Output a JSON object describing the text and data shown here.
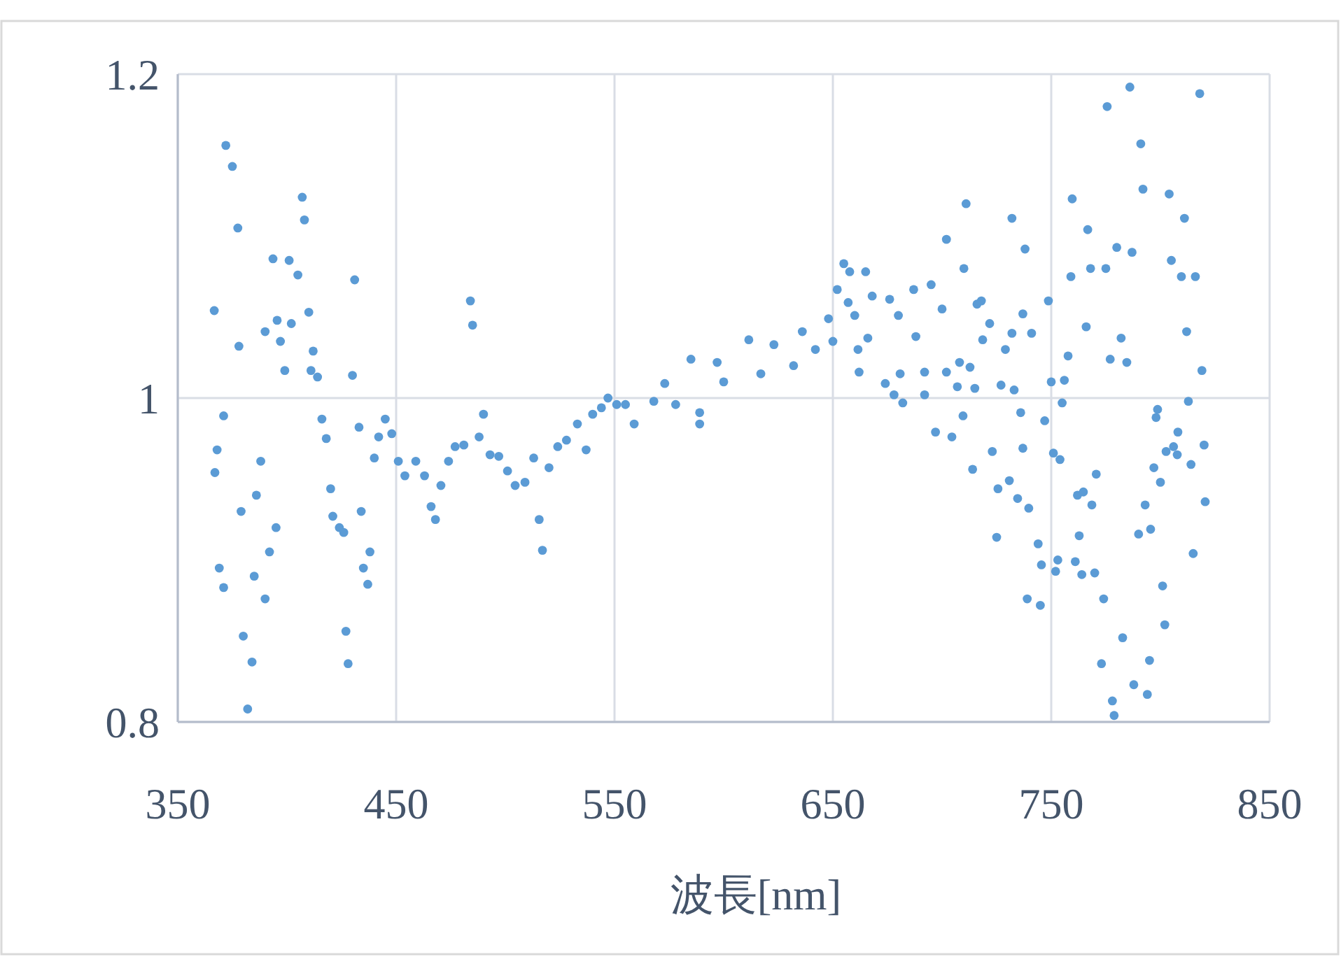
{
  "chart_data": {
    "type": "scatter",
    "xlabel": "波長[nm]",
    "xlim": [
      350,
      850
    ],
    "xticks": [
      350,
      450,
      550,
      650,
      750,
      850
    ],
    "ylim": [
      0.8,
      1.2
    ],
    "yticks": [
      0.8,
      1,
      1.2
    ],
    "grid": true,
    "marker": "circle",
    "series": [
      {
        "color": "#5b9bd5",
        "x": [
          366.7,
          368,
          367,
          369,
          371,
          371,
          372,
          375,
          377.5,
          378,
          379,
          380,
          382,
          384,
          385,
          386,
          388,
          390,
          390,
          392,
          393.6,
          395,
          395.5,
          397,
          399,
          401,
          402,
          405,
          407,
          408,
          410,
          411,
          412,
          414,
          416,
          418,
          420,
          421,
          424,
          426,
          427,
          428,
          430,
          431,
          433,
          434,
          435,
          437,
          438,
          440,
          442,
          445,
          448,
          451,
          454,
          459,
          463,
          466,
          468,
          470.5,
          474,
          477,
          481,
          484,
          485,
          488,
          490,
          493,
          497,
          501,
          504.5,
          509,
          513,
          515.5,
          517,
          520,
          524,
          528,
          533,
          537,
          540,
          544,
          547,
          551,
          555,
          559,
          568,
          573,
          578,
          589,
          589,
          585,
          597,
          600,
          611.5,
          617,
          623,
          632,
          636,
          642,
          648,
          650,
          655,
          657.7,
          665,
          652,
          657,
          660,
          661.5,
          662,
          666,
          668,
          674,
          676,
          678,
          682,
          680,
          687,
          695,
          688,
          692,
          692,
          697,
          700,
          711,
          702,
          710,
          718,
          732,
          738,
          737,
          732,
          729,
          727,
          733,
          736,
          747,
          714,
          704.5,
          709.6,
          723,
          725.6,
          730.8,
          734.6,
          739.7,
          725,
          737,
          744,
          739,
          745,
          745.5,
          752,
          753,
          751,
          754,
          750,
          755,
          756,
          757.7,
          748.7,
          759,
          759.6,
          766.7,
          768,
          766,
          761,
          764,
          762,
          764.7,
          762.8,
          768.6,
          770.6,
          769.9,
          774,
          773,
          778,
          778.8,
          782.7,
          780,
          775.6,
          775,
          777,
          782,
          784.6,
          786,
          791,
          792,
          787,
          787.8,
          794,
          795,
          790,
          795.5,
          793,
          797,
          800,
          801,
          802,
          798,
          798.7,
          802.6,
          806,
          808,
          807.7,
          804,
          805,
          811,
          809.6,
          816,
          812,
          819,
          812.8,
          814,
          820,
          820.5,
          815,
          818,
          680.8,
          702,
          708,
          716,
          721.8,
          712.8,
          715,
          707,
          718.6,
          741
        ],
        "values": [
          1.054,
          0.968,
          0.954,
          0.895,
          0.883,
          0.989,
          1.156,
          1.143,
          1.105,
          1.032,
          0.93,
          0.853,
          0.808,
          0.837,
          0.89,
          0.94,
          0.961,
          1.041,
          0.876,
          0.905,
          1.086,
          0.92,
          1.048,
          1.035,
          1.017,
          1.085,
          1.046,
          1.076,
          1.124,
          1.11,
          1.053,
          1.017,
          1.029,
          1.013,
          0.987,
          0.975,
          0.944,
          0.927,
          0.92,
          0.917,
          0.856,
          0.836,
          1.014,
          1.073,
          0.982,
          0.93,
          0.895,
          0.885,
          0.905,
          0.963,
          0.976,
          0.987,
          0.978,
          0.961,
          0.952,
          0.961,
          0.952,
          0.933,
          0.925,
          0.946,
          0.961,
          0.97,
          0.971,
          1.06,
          1.045,
          0.976,
          0.99,
          0.965,
          0.964,
          0.955,
          0.946,
          0.948,
          0.963,
          0.925,
          0.906,
          0.957,
          0.97,
          0.974,
          0.984,
          0.968,
          0.99,
          0.994,
          1.0,
          0.996,
          0.996,
          0.984,
          0.998,
          1.009,
          0.996,
          0.991,
          0.984,
          1.024,
          1.022,
          1.01,
          1.036,
          1.015,
          1.033,
          1.02,
          1.041,
          1.03,
          1.049,
          1.035,
          1.083,
          1.078,
          1.078,
          1.067,
          1.059,
          1.051,
          1.03,
          1.016,
          1.037,
          1.063,
          1.009,
          1.061,
          1.002,
          0.997,
          1.051,
          1.067,
          1.07,
          1.038,
          1.016,
          1.002,
          0.979,
          1.055,
          1.12,
          1.098,
          1.08,
          1.06,
          1.111,
          1.092,
          1.052,
          1.04,
          1.03,
          1.008,
          1.005,
          0.991,
          0.986,
          0.956,
          0.976,
          0.989,
          0.967,
          0.944,
          0.949,
          0.938,
          0.932,
          0.914,
          0.969,
          0.91,
          0.876,
          0.872,
          0.897,
          0.893,
          0.9,
          0.966,
          0.962,
          1.01,
          0.997,
          1.011,
          1.026,
          1.06,
          1.075,
          1.123,
          1.104,
          1.08,
          1.044,
          0.899,
          0.891,
          0.94,
          0.942,
          0.915,
          0.934,
          0.953,
          0.892,
          0.876,
          0.836,
          0.813,
          0.804,
          0.852,
          1.093,
          1.18,
          1.08,
          1.024,
          1.037,
          1.022,
          1.192,
          1.157,
          1.129,
          1.09,
          0.823,
          0.817,
          0.838,
          0.916,
          0.919,
          0.934,
          0.957,
          0.948,
          0.884,
          0.86,
          0.988,
          0.993,
          0.967,
          0.97,
          0.979,
          0.965,
          1.126,
          1.085,
          1.111,
          1.075,
          1.075,
          1.041,
          1.017,
          0.998,
          0.959,
          0.971,
          0.936,
          0.904,
          1.188,
          1.015,
          1.016,
          1.022,
          1.058,
          1.046,
          1.019,
          1.006,
          1.007,
          1.036,
          1.04
        ]
      }
    ]
  }
}
